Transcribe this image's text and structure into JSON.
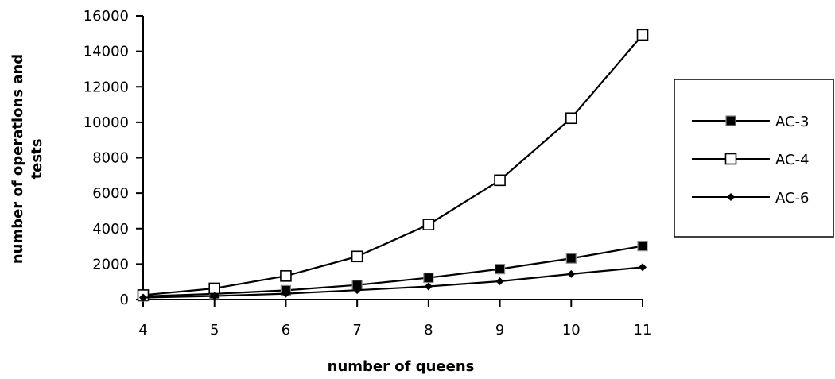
{
  "chart_data": {
    "type": "line",
    "x": [
      4,
      5,
      6,
      7,
      8,
      9,
      10,
      11
    ],
    "xlim": [
      4,
      11
    ],
    "ylim": [
      0,
      16000
    ],
    "x_ticks": [
      "4",
      "5",
      "6",
      "7",
      "8",
      "9",
      "10",
      "11"
    ],
    "y_ticks": [
      "0",
      "2000",
      "4000",
      "6000",
      "8000",
      "10000",
      "12000",
      "14000",
      "16000"
    ],
    "xlabel": "number of queens",
    "ylabel": [
      "number of operations and",
      "tests"
    ],
    "grid": false,
    "legend_position": "right",
    "series": [
      {
        "name": "AC-3",
        "marker": "filled-square",
        "values": [
          180,
          320,
          520,
          820,
          1230,
          1720,
          2320,
          3020
        ]
      },
      {
        "name": "AC-4",
        "marker": "open-square",
        "values": [
          250,
          630,
          1330,
          2430,
          4230,
          6730,
          10230,
          14930
        ]
      },
      {
        "name": "AC-6",
        "marker": "diamond",
        "values": [
          110,
          200,
          330,
          530,
          740,
          1030,
          1440,
          1820
        ]
      }
    ]
  }
}
